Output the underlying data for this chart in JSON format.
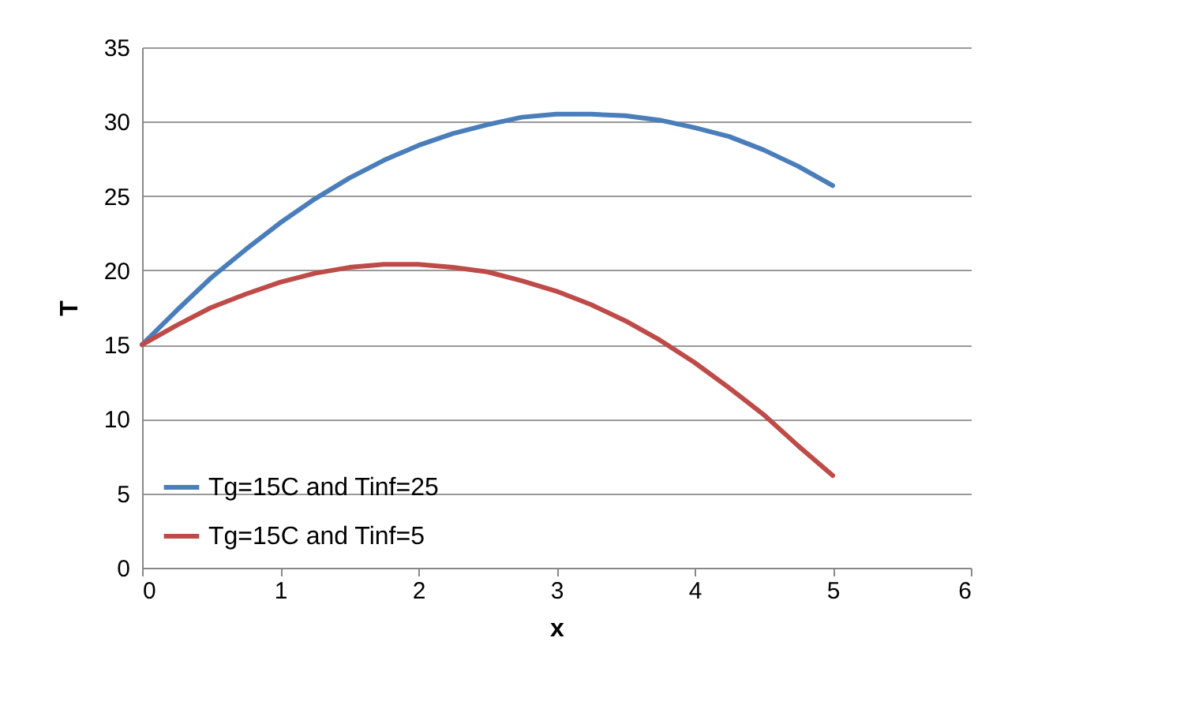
{
  "chart_data": {
    "type": "line",
    "xlabel": "x",
    "ylabel": "T",
    "x": [
      0,
      0.25,
      0.5,
      0.75,
      1,
      1.25,
      1.5,
      1.75,
      2,
      2.25,
      2.5,
      2.75,
      3,
      3.25,
      3.5,
      3.75,
      4,
      4.25,
      4.5,
      4.75,
      5
    ],
    "series": [
      {
        "name": "Tg=15C and Tinf=25",
        "color": "#4a7ebb",
        "values": [
          15,
          17.3,
          19.5,
          21.4,
          23.2,
          24.8,
          26.2,
          27.4,
          28.4,
          29.2,
          29.8,
          30.3,
          30.5,
          30.5,
          30.4,
          30.1,
          29.6,
          29.0,
          28.1,
          27.0,
          25.7
        ]
      },
      {
        "name": "Tg=15C and Tinf=5",
        "color": "#be4b48",
        "values": [
          15,
          16.3,
          17.5,
          18.4,
          19.2,
          19.8,
          20.2,
          20.4,
          20.4,
          20.2,
          19.9,
          19.3,
          18.6,
          17.7,
          16.6,
          15.3,
          13.8,
          12.1,
          10.3,
          8.2,
          6.2
        ]
      }
    ],
    "xlim": [
      0,
      6
    ],
    "xticks": [
      0,
      1,
      2,
      3,
      4,
      5,
      6
    ],
    "ylim": [
      0,
      35
    ],
    "yticks": [
      0,
      5,
      10,
      15,
      20,
      25,
      30,
      35
    ],
    "grid": "y",
    "legend": "bottom left",
    "marker": "none",
    "line_style": "solid"
  }
}
